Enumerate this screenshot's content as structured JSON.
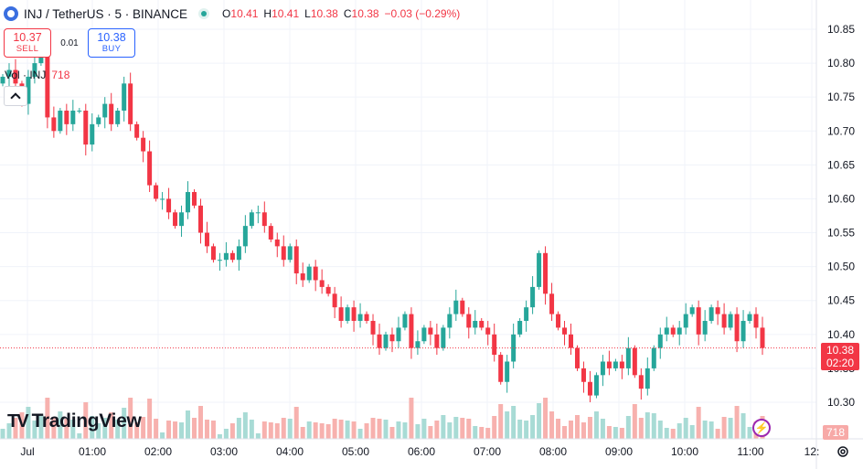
{
  "header": {
    "title": "INJ / TetherUS · 5 · BINANCE",
    "open_label": "O",
    "open": "10.41",
    "high_label": "H",
    "high": "10.41",
    "low_label": "L",
    "low": "10.38",
    "close_label": "C",
    "close": "10.38",
    "change": "−0.03 (−0.29%)"
  },
  "trade": {
    "sell_price": "10.37",
    "sell_label": "SELL",
    "spread": "0.01",
    "buy_price": "10.38",
    "buy_label": "BUY"
  },
  "volume_legend": {
    "label": "Vol · INJ",
    "value": "718"
  },
  "price_tag": {
    "price": "10.38",
    "countdown": "02:20"
  },
  "volume_tag": "718",
  "logo": {
    "text": "TradingView"
  },
  "colors": {
    "up": "#26a69a",
    "down": "#f23645",
    "grid": "#f0f3fa",
    "text": "#131722"
  },
  "icons": [
    "symbol-logo-icon",
    "eye-icon",
    "collapse-icon",
    "lightning-icon",
    "gear-icon"
  ],
  "chart_data": {
    "type": "candlestick",
    "interval": "5",
    "y_ticks": [
      "10.85",
      "10.80",
      "10.75",
      "10.70",
      "10.65",
      "10.60",
      "10.55",
      "10.50",
      "10.45",
      "10.40",
      "10.35",
      "10.30"
    ],
    "x_ticks": [
      "Jul",
      "01:00",
      "02:00",
      "03:00",
      "04:00",
      "05:00",
      "06:00",
      "07:00",
      "08:00",
      "09:00",
      "10:00",
      "11:00",
      "12:"
    ],
    "ylim": [
      10.25,
      10.88
    ],
    "grid": true,
    "current_price": 10.38,
    "series_close": [
      10.78,
      10.79,
      10.77,
      10.74,
      10.78,
      10.8,
      10.83,
      10.72,
      10.7,
      10.73,
      10.71,
      10.73,
      10.73,
      10.68,
      10.71,
      10.72,
      10.74,
      10.71,
      10.73,
      10.77,
      10.71,
      10.69,
      10.67,
      10.62,
      10.6,
      10.6,
      10.58,
      10.56,
      10.58,
      10.61,
      10.59,
      10.55,
      10.53,
      10.51,
      10.51,
      10.52,
      10.51,
      10.53,
      10.56,
      10.58,
      10.58,
      10.56,
      10.54,
      10.53,
      10.51,
      10.53,
      10.49,
      10.48,
      10.5,
      10.48,
      10.47,
      10.46,
      10.44,
      10.42,
      10.44,
      10.42,
      10.43,
      10.42,
      10.4,
      10.38,
      10.4,
      10.39,
      10.41,
      10.43,
      10.38,
      10.39,
      10.41,
      10.4,
      10.38,
      10.41,
      10.43,
      10.45,
      10.43,
      10.41,
      10.42,
      10.41,
      10.4,
      10.37,
      10.33,
      10.36,
      10.4,
      10.42,
      10.44,
      10.47,
      10.52,
      10.46,
      10.43,
      10.41,
      10.4,
      10.38,
      10.35,
      10.33,
      10.31,
      10.34,
      10.36,
      10.35,
      10.36,
      10.35,
      10.38,
      10.34,
      10.32,
      10.35,
      10.38,
      10.4,
      10.41,
      10.4,
      10.41,
      10.43,
      10.44,
      10.4,
      10.42,
      10.44,
      10.43,
      10.41,
      10.43,
      10.39,
      10.42,
      10.43,
      10.41,
      10.38
    ],
    "volume_legend_value": 718
  }
}
